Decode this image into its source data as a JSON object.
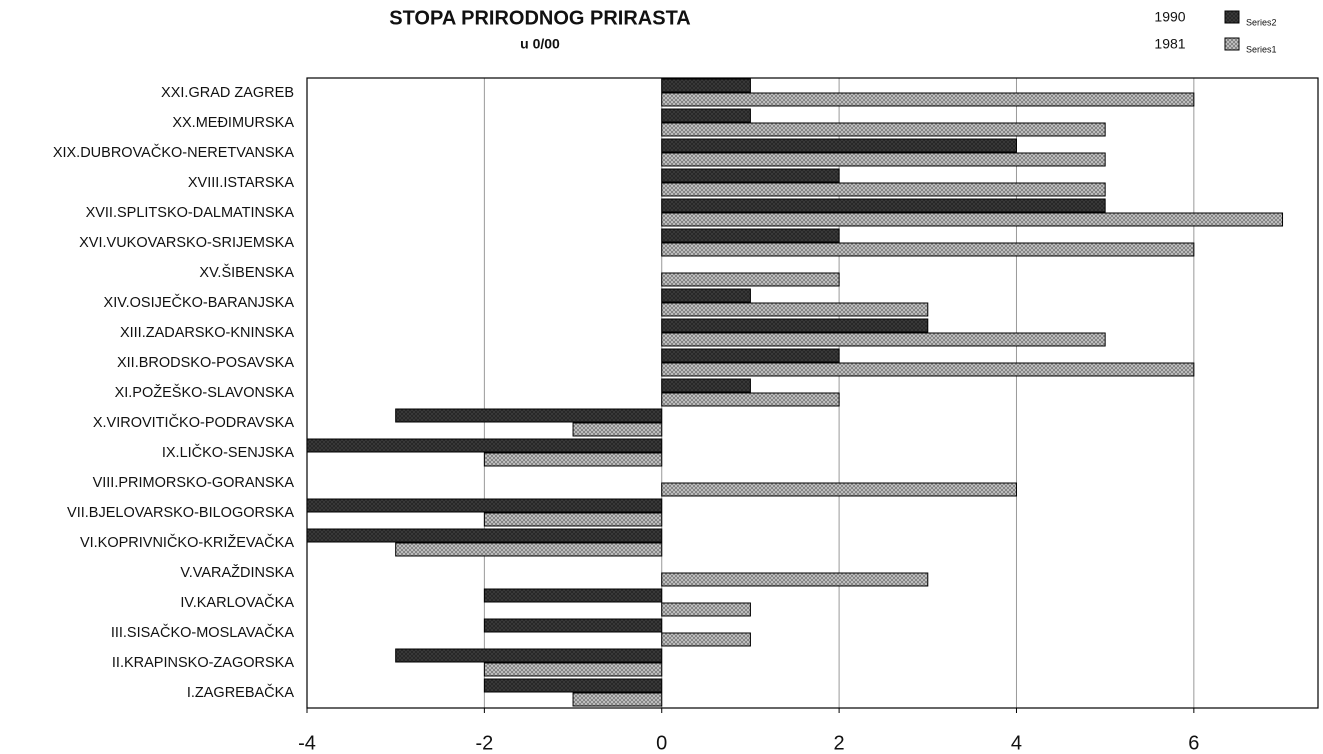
{
  "chart_data": {
    "type": "barh",
    "title": "STOPA PRIRODNOG PRIRASTA",
    "subtitle": "u 0/00",
    "categories": [
      "XXI.GRAD ZAGREB",
      "XX.MEĐIMURSKA",
      "XIX.DUBROVAČKO-NERETVANSKA",
      "XVIII.ISTARSKA",
      "XVII.SPLITSKO-DALMATINSKA",
      "XVI.VUKOVARSKO-SRIJEMSKA",
      "XV.ŠIBENSKA",
      "XIV.OSIJEČKO-BARANJSKA",
      "XIII.ZADARSKO-KNINSKA",
      "XII.BRODSKO-POSAVSKA",
      "XI.POŽEŠKO-SLAVONSKA",
      "X.VIROVITIČKO-PODRAVSKA",
      "IX.LIČKO-SENJSKA",
      "VIII.PRIMORSKO-GORANSKA",
      "VII.BJELOVARSKO-BILOGORSKA",
      "VI.KOPRIVNIČKO-KRIŽEVAČKA",
      "V.VARAŽDINSKA",
      "IV.KARLOVAČKA",
      "III.SISAČKO-MOSLAVAČKA",
      "II.KRAPINSKO-ZAGORSKA",
      "I.ZAGREBAČKA"
    ],
    "series": [
      {
        "name": "Series2",
        "label": "1990",
        "color": "#3a3a3a",
        "values": [
          1,
          1,
          4,
          2,
          5,
          2,
          0,
          1,
          3,
          2,
          1,
          -3,
          -4,
          0,
          -4,
          -4,
          0,
          -2,
          -2,
          -3,
          -2
        ]
      },
      {
        "name": "Series1",
        "label": "1981",
        "color": "#c4c4c4",
        "values": [
          6,
          5,
          5,
          5,
          7,
          6,
          2,
          3,
          5,
          6,
          2,
          -1,
          -2,
          4,
          -2,
          -3,
          3,
          1,
          1,
          -2,
          -1
        ]
      }
    ],
    "xlim": [
      -4,
      7.4
    ],
    "xticks": [
      -4,
      -2,
      0,
      2,
      4,
      6
    ],
    "grid": true
  }
}
